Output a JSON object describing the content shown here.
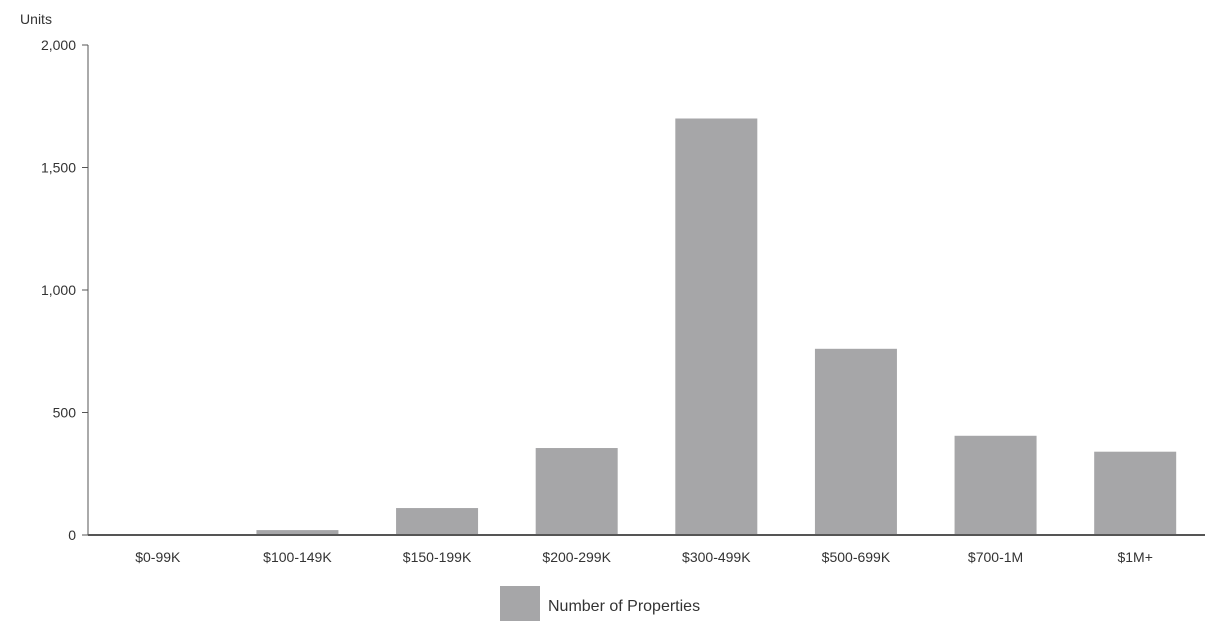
{
  "chart_data": {
    "type": "bar",
    "ylabel": "Units",
    "categories": [
      "$0-99K",
      "$100-149K",
      "$150-199K",
      "$200-299K",
      "$300-499K",
      "$500-699K",
      "$700-1M",
      "$1M+"
    ],
    "series": [
      {
        "name": "Number of Properties",
        "values": [
          3,
          20,
          110,
          355,
          1700,
          760,
          405,
          340
        ]
      }
    ],
    "ylim": [
      0,
      2000
    ],
    "yticks": [
      0,
      500,
      1000,
      1500,
      2000
    ],
    "ytick_labels": [
      "0",
      "500",
      "1,000",
      "1,500",
      "2,000"
    ],
    "grid": false,
    "legend_position": "bottom-center",
    "bar_color": "#a6a6a8",
    "axis_color": "#555555"
  }
}
